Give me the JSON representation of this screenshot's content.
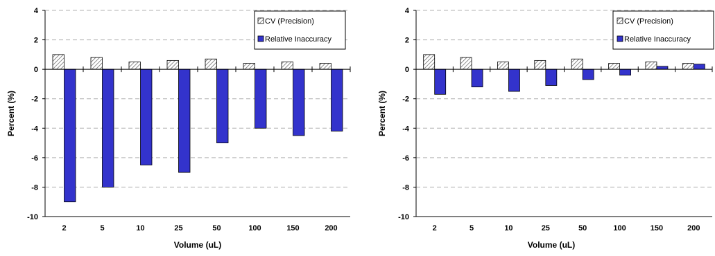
{
  "colors": {
    "cv_fill": "#ffffff",
    "cv_hatch": "#666666",
    "ri_fill": "#3333cc",
    "grid": "#b0b0b0"
  },
  "chart_data": [
    {
      "type": "bar",
      "categories": [
        "2",
        "5",
        "10",
        "25",
        "50",
        "100",
        "150",
        "200"
      ],
      "series": [
        {
          "name": "CV (Precision)",
          "values": [
            1.0,
            0.8,
            0.5,
            0.6,
            0.7,
            0.4,
            0.5,
            0.4
          ]
        },
        {
          "name": "Relative Inaccuracy",
          "values": [
            -9.0,
            -8.0,
            -6.5,
            -7.0,
            -5.0,
            -4.0,
            -4.5,
            -4.2
          ]
        }
      ],
      "xlabel": "Volume (uL)",
      "ylabel": "Percent (%)",
      "ylim": [
        -10,
        4
      ],
      "yticks": [
        "4",
        "2",
        "0",
        "-2",
        "-4",
        "-6",
        "-8",
        "-10"
      ],
      "grid": true,
      "legend_position": "top-right"
    },
    {
      "type": "bar",
      "categories": [
        "2",
        "5",
        "10",
        "25",
        "50",
        "100",
        "150",
        "200"
      ],
      "series": [
        {
          "name": "CV (Precision)",
          "values": [
            1.0,
            0.8,
            0.5,
            0.6,
            0.7,
            0.4,
            0.5,
            0.4
          ]
        },
        {
          "name": "Relative Inaccuracy",
          "values": [
            -1.7,
            -1.2,
            -1.5,
            -1.1,
            -0.7,
            -0.4,
            0.2,
            0.35
          ]
        }
      ],
      "xlabel": "Volume (uL)",
      "ylabel": "Percent (%)",
      "ylim": [
        -10,
        4
      ],
      "yticks": [
        "4",
        "2",
        "0",
        "-2",
        "-4",
        "-6",
        "-8",
        "-10"
      ],
      "grid": true,
      "legend_position": "top-right"
    }
  ]
}
